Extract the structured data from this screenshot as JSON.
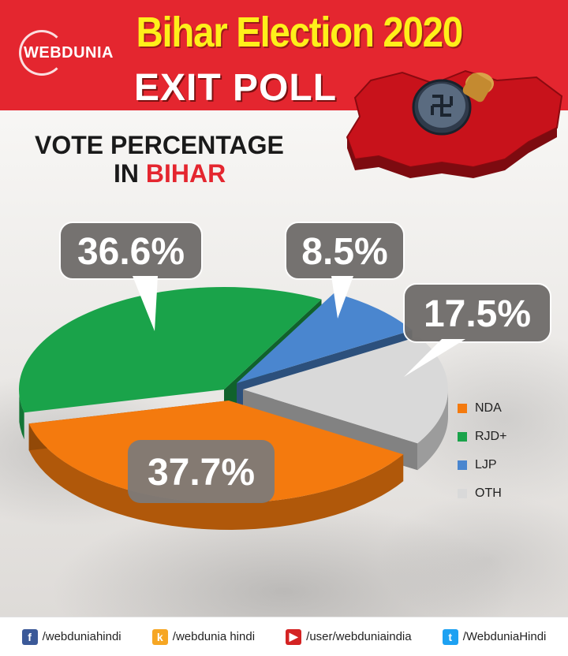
{
  "header": {
    "logo_text": "WEBDUNIA",
    "title": "Bihar Election 2020",
    "subtitle": "EXIT POLL"
  },
  "chart_title": {
    "line1": "VOTE PERCENTAGE",
    "line2_prefix": "IN ",
    "line2_accent": "BIHAR"
  },
  "chart_data": {
    "type": "pie",
    "categories": [
      "NDA",
      "RJD+",
      "LJP",
      "OTH"
    ],
    "values": [
      37.7,
      36.6,
      8.5,
      17.5
    ],
    "labels": [
      "37.7%",
      "36.6%",
      "8.5%",
      "17.5%"
    ],
    "colors": [
      "#f47a0e",
      "#1aa34a",
      "#4a86cf",
      "#d9d9d9"
    ],
    "legend_position": "right"
  },
  "footer": {
    "items": [
      {
        "icon": "facebook-icon",
        "text": "/webduniahindi",
        "color": "#3b5998",
        "glyph": "f"
      },
      {
        "icon": "koo-icon",
        "text": "/webdunia hindi",
        "color": "#f6a623",
        "glyph": "k"
      },
      {
        "icon": "youtube-icon",
        "text": "/user/webduniaindia",
        "color": "#d42323",
        "glyph": "▶"
      },
      {
        "icon": "twitter-icon",
        "text": "/WebduniaHindi",
        "color": "#1da1f2",
        "glyph": "t"
      }
    ]
  }
}
